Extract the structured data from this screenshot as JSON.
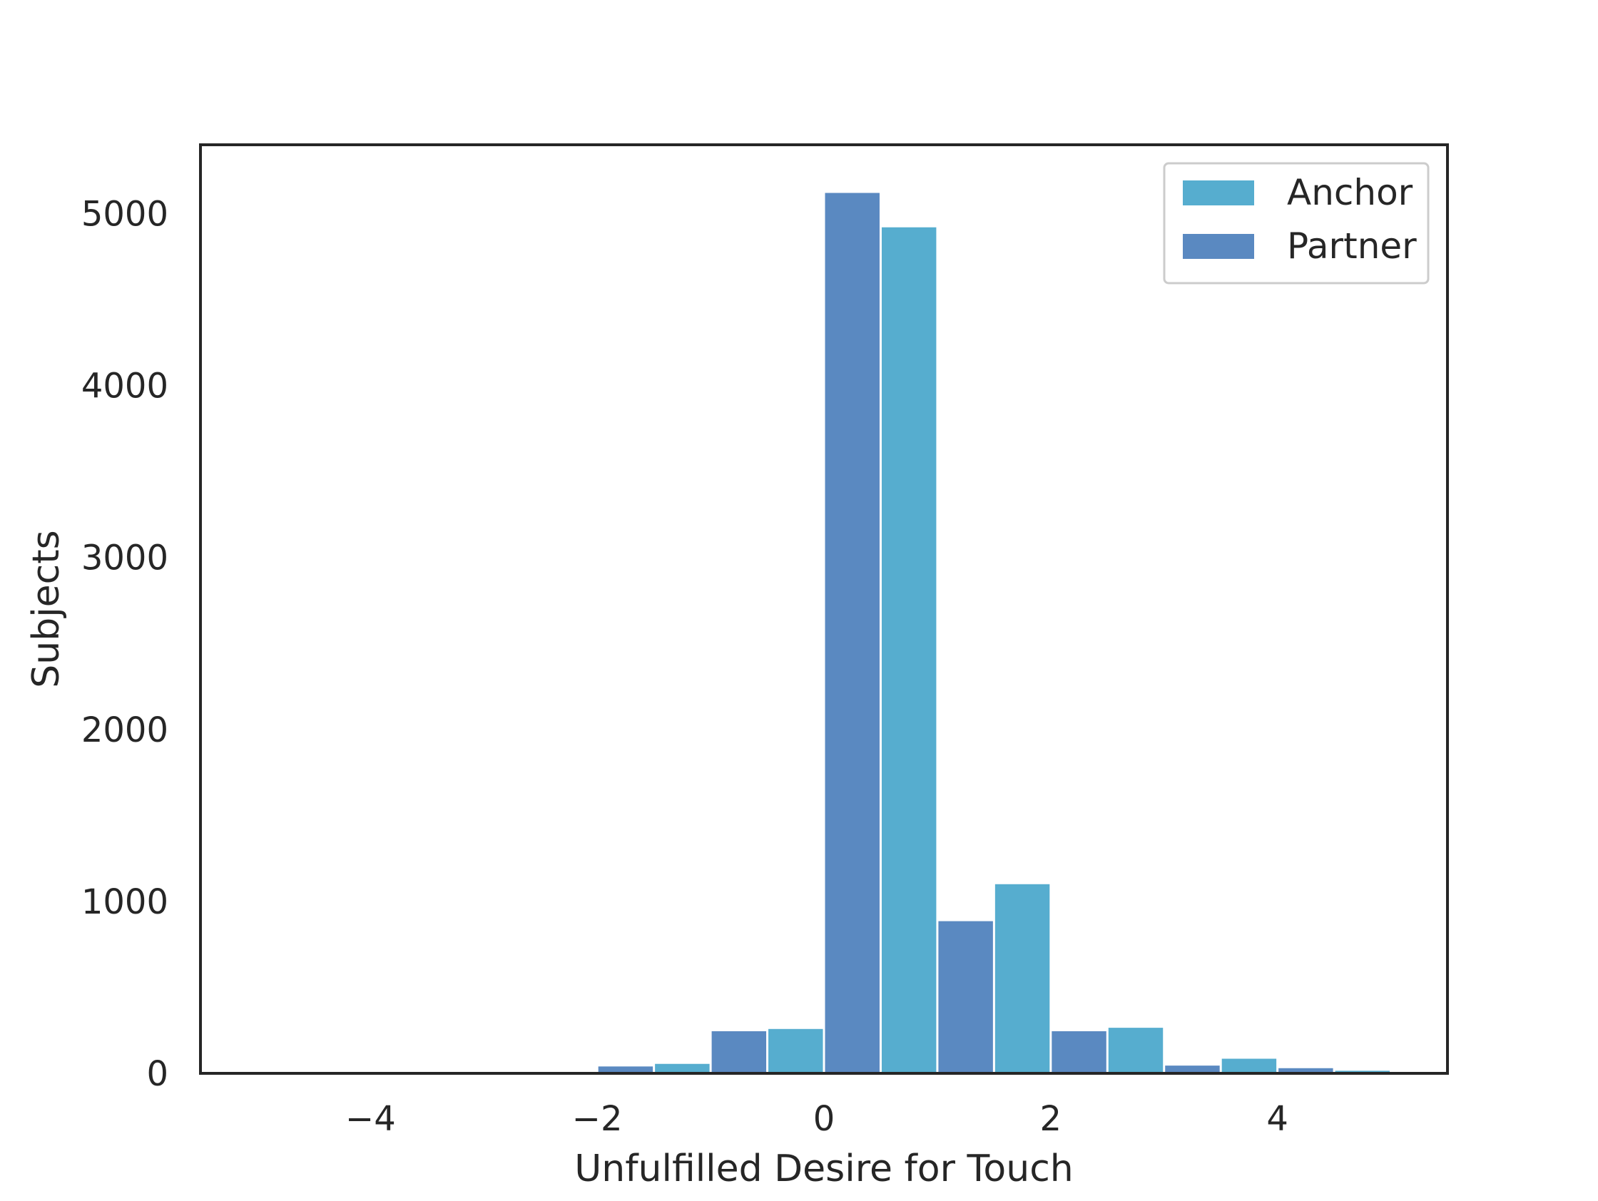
{
  "chart_data": {
    "type": "bar",
    "xlabel": "Unfulfilled Desire for Touch",
    "ylabel": "Subjects",
    "xlim": [
      -5.5,
      5.5
    ],
    "ylim": [
      0,
      5400
    ],
    "xticks": [
      -4,
      -2,
      0,
      2,
      4
    ],
    "xtick_labels": [
      "−4",
      "−2",
      "0",
      "2",
      "4"
    ],
    "yticks": [
      0,
      1000,
      2000,
      3000,
      4000,
      5000
    ],
    "ytick_labels": [
      "0",
      "1000",
      "2000",
      "3000",
      "4000",
      "5000"
    ],
    "bin_width": 0.5,
    "grid": false,
    "legend": "top-right",
    "series": [
      {
        "name": "Anchor",
        "color": "#56adcf",
        "bins": [
          {
            "x0": -1.5,
            "x1": -1.0,
            "value": 55
          },
          {
            "x0": -0.5,
            "x1": 0.0,
            "value": 258
          },
          {
            "x0": 0.5,
            "x1": 1.0,
            "value": 4920
          },
          {
            "x0": 1.5,
            "x1": 2.0,
            "value": 1100
          },
          {
            "x0": 2.5,
            "x1": 3.0,
            "value": 265
          },
          {
            "x0": 3.5,
            "x1": 4.0,
            "value": 85
          },
          {
            "x0": 4.5,
            "x1": 5.0,
            "value": 15
          }
        ]
      },
      {
        "name": "Partner",
        "color": "#5a89c1",
        "bins": [
          {
            "x0": -2.0,
            "x1": -1.5,
            "value": 40
          },
          {
            "x0": -1.0,
            "x1": -0.5,
            "value": 245
          },
          {
            "x0": 0.0,
            "x1": 0.5,
            "value": 5120
          },
          {
            "x0": 1.0,
            "x1": 1.5,
            "value": 885
          },
          {
            "x0": 2.0,
            "x1": 2.5,
            "value": 245
          },
          {
            "x0": 3.0,
            "x1": 3.5,
            "value": 45
          },
          {
            "x0": 4.0,
            "x1": 4.5,
            "value": 30
          }
        ]
      }
    ]
  }
}
